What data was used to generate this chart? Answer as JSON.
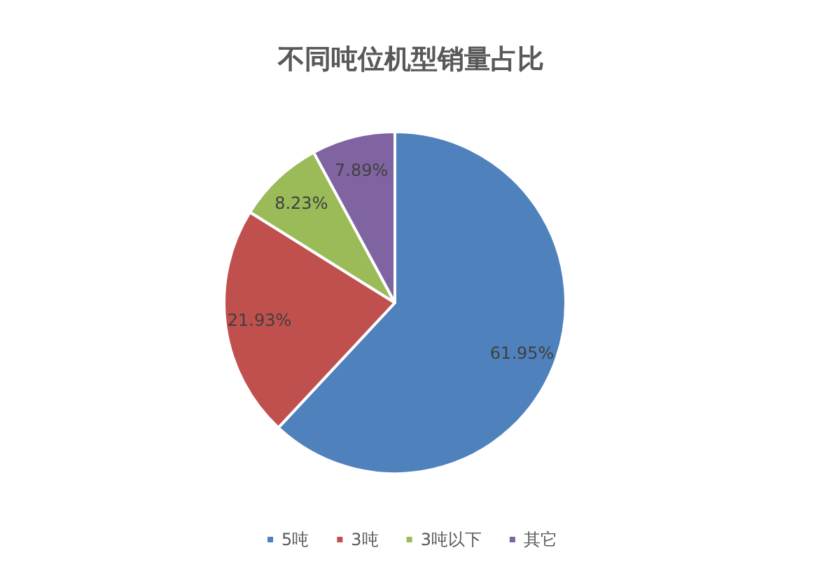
{
  "chart_data": {
    "type": "pie",
    "title": "不同吨位机型销量占比",
    "categories": [
      "5吨",
      "3吨",
      "3吨以下",
      "其它"
    ],
    "values": [
      61.95,
      21.93,
      8.23,
      7.89
    ],
    "colors": [
      "#4f81bd",
      "#c0504d",
      "#9bbb59",
      "#8064a2"
    ],
    "value_labels": [
      "61.95%",
      "21.93%",
      "8.23%",
      "7.89%"
    ],
    "legend": "bottom"
  }
}
